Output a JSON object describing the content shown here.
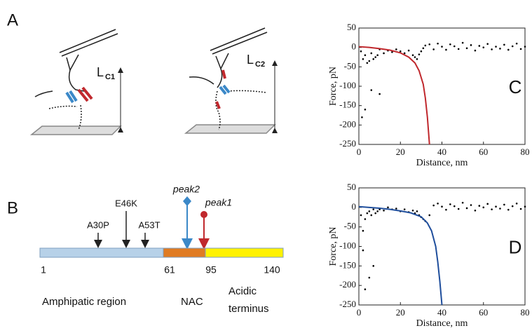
{
  "panel_a": {
    "label": "A",
    "diagram_1": {
      "length_symbol": "L",
      "length_subscript": "C1"
    },
    "diagram_2": {
      "length_symbol": "L",
      "length_subscript": "C2"
    }
  },
  "panel_b": {
    "label": "B",
    "mutations": [
      "A30P",
      "E46K",
      "A53T"
    ],
    "peaks": [
      "peak2",
      "peak1"
    ],
    "positions": [
      "1",
      "61",
      "95",
      "140"
    ],
    "regions": [
      "Amphipatic region",
      "NAC",
      "Acidic",
      "terminus"
    ]
  },
  "chart_data": [
    {
      "type": "scatter",
      "panel_label": "C",
      "x_label": "Distance, nm",
      "y_label": "Force, pN",
      "xlim": [
        0,
        80
      ],
      "ylim": [
        -250,
        50
      ],
      "xticks": [
        0,
        20,
        40,
        60,
        80
      ],
      "yticks": [
        50,
        0,
        -50,
        -100,
        -150,
        -200,
        -250
      ],
      "points": {
        "color": "#000000",
        "x": [
          1,
          2,
          3,
          4,
          5,
          6,
          7,
          8,
          9,
          10,
          12,
          14,
          16,
          18,
          20,
          22,
          24,
          26,
          27,
          28,
          29,
          30,
          31,
          32,
          34,
          36,
          38,
          40,
          42,
          44,
          46,
          48,
          50,
          52,
          54,
          56,
          58,
          60,
          62,
          64,
          66,
          68,
          70,
          72,
          74,
          76,
          78,
          80,
          1.5,
          3,
          6,
          10
        ],
        "y": [
          -10,
          -30,
          -20,
          -40,
          -35,
          -15,
          -30,
          -25,
          -20,
          -5,
          -15,
          -8,
          -12,
          -5,
          -10,
          -15,
          -8,
          -20,
          -25,
          -30,
          -18,
          -10,
          -2,
          5,
          8,
          -5,
          10,
          2,
          -6,
          8,
          3,
          -4,
          12,
          -2,
          6,
          -8,
          4,
          0,
          9,
          -5,
          2,
          -3,
          7,
          -6,
          3,
          10,
          -4,
          2,
          -180,
          -160,
          -110,
          -120
        ]
      },
      "fit": {
        "color": "#c0282d",
        "x": [
          0,
          5,
          10,
          15,
          20,
          24,
          27,
          29,
          31,
          32,
          33,
          34
        ],
        "y": [
          2,
          0,
          -3,
          -7,
          -14,
          -25,
          -40,
          -60,
          -95,
          -130,
          -180,
          -250
        ]
      }
    },
    {
      "type": "scatter",
      "panel_label": "D",
      "x_label": "Distance, nm",
      "y_label": "Force, pN",
      "xlim": [
        0,
        80
      ],
      "ylim": [
        -250,
        50
      ],
      "xticks": [
        0,
        20,
        40,
        60,
        80
      ],
      "yticks": [
        50,
        0,
        -50,
        -100,
        -150,
        -200,
        -250
      ],
      "points": {
        "color": "#000000",
        "x": [
          1,
          2,
          3,
          4,
          5,
          6,
          7,
          8,
          9,
          10,
          12,
          14,
          16,
          18,
          20,
          22,
          24,
          26,
          27,
          28,
          29,
          30,
          31,
          32,
          34,
          36,
          38,
          40,
          42,
          44,
          46,
          48,
          50,
          52,
          54,
          56,
          58,
          60,
          62,
          64,
          66,
          68,
          70,
          72,
          74,
          76,
          78,
          80,
          3,
          5,
          7,
          2
        ],
        "y": [
          -20,
          -60,
          -30,
          -15,
          -10,
          -20,
          -5,
          -15,
          -10,
          -5,
          -8,
          0,
          -5,
          -3,
          -10,
          -5,
          -12,
          -8,
          -15,
          -10,
          -20,
          -25,
          -30,
          -35,
          -20,
          5,
          10,
          2,
          -6,
          8,
          3,
          -4,
          12,
          -2,
          6,
          -8,
          4,
          0,
          9,
          -5,
          2,
          -3,
          7,
          -6,
          3,
          10,
          -4,
          2,
          -210,
          -180,
          -150,
          -110
        ]
      },
      "fit": {
        "color": "#1f4e9c",
        "x": [
          0,
          5,
          10,
          15,
          20,
          25,
          30,
          33,
          35,
          37,
          38,
          39,
          40
        ],
        "y": [
          2,
          0,
          -2,
          -5,
          -9,
          -14,
          -24,
          -40,
          -60,
          -100,
          -140,
          -190,
          -250
        ]
      }
    }
  ]
}
